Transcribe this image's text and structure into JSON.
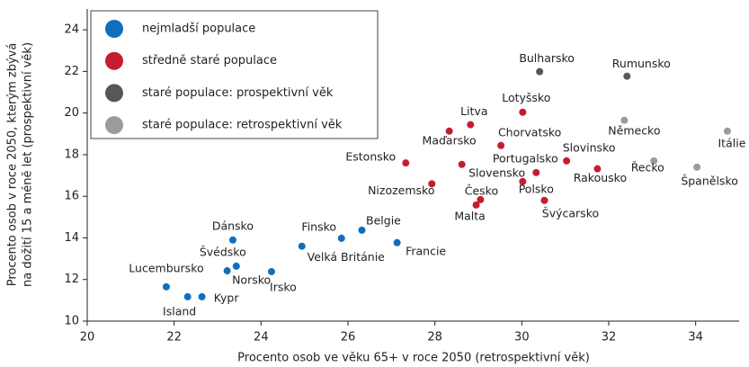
{
  "chart_data": {
    "type": "scatter",
    "xlabel": "Procento osob ve věku 65+ v roce 2050 (retrospektivní věk)",
    "ylabel": [
      "Procento osob v roce 2050, kterým zbývá",
      "na dožití 15 a méně let (prospektivní věk)"
    ],
    "xlim": [
      20,
      35
    ],
    "xticks": [
      20,
      22,
      24,
      26,
      28,
      30,
      32,
      34
    ],
    "ylim": [
      10,
      25
    ],
    "yticks": [
      10,
      12,
      14,
      16,
      18,
      20,
      22,
      24
    ],
    "legend": "upper left",
    "series": [
      {
        "name": "nejmladší populace",
        "color": "#0f6fbd",
        "labels": [
          "Lucembursko",
          "Island",
          "Kypr",
          "Norsko",
          "Švédsko",
          "Dánsko",
          "Irsko",
          "Velká Británie",
          "Finsko",
          "Belgie",
          "Francie"
        ],
        "x": [
          21.82,
          22.31,
          22.64,
          23.22,
          23.43,
          23.35,
          24.24,
          24.94,
          25.85,
          26.32,
          27.13
        ],
        "values": [
          11.65,
          11.17,
          11.17,
          12.42,
          12.64,
          13.9,
          12.38,
          13.6,
          13.98,
          14.37,
          13.77
        ]
      },
      {
        "name": "středně staré populace",
        "color": "#c41e2e",
        "labels": [
          "Estonsko",
          "Nizozemsko",
          "Maďarsko",
          "Litva",
          "Slovensko",
          "Česko",
          "Malta",
          "Chorvatsko",
          "Lotyšsko",
          "Portugalsko",
          "Polsko",
          "Švýcarsko",
          "Slovinsko",
          "Rakousko"
        ],
        "x": [
          27.33,
          27.93,
          28.33,
          28.82,
          28.62,
          29.05,
          28.95,
          29.52,
          30.02,
          30.33,
          30.02,
          30.52,
          31.03,
          31.74
        ],
        "values": [
          17.6,
          16.6,
          19.13,
          19.44,
          17.53,
          15.84,
          15.58,
          18.44,
          20.04,
          17.14,
          16.71,
          15.8,
          17.7,
          17.32
        ]
      },
      {
        "name": "staré populace: prospektivní věk",
        "color": "#575757",
        "labels": [
          "Bulharsko",
          "Rumunsko"
        ],
        "x": [
          30.41,
          32.42
        ],
        "values": [
          21.99,
          21.77
        ]
      },
      {
        "name": "staré populace: retrospektivní věk",
        "color": "#9b9b9b",
        "labels": [
          "Německo",
          "Řecko",
          "Španělsko",
          "Itálie"
        ],
        "x": [
          32.36,
          33.04,
          34.03,
          34.73
        ],
        "values": [
          19.65,
          17.7,
          17.4,
          19.13
        ]
      }
    ]
  }
}
